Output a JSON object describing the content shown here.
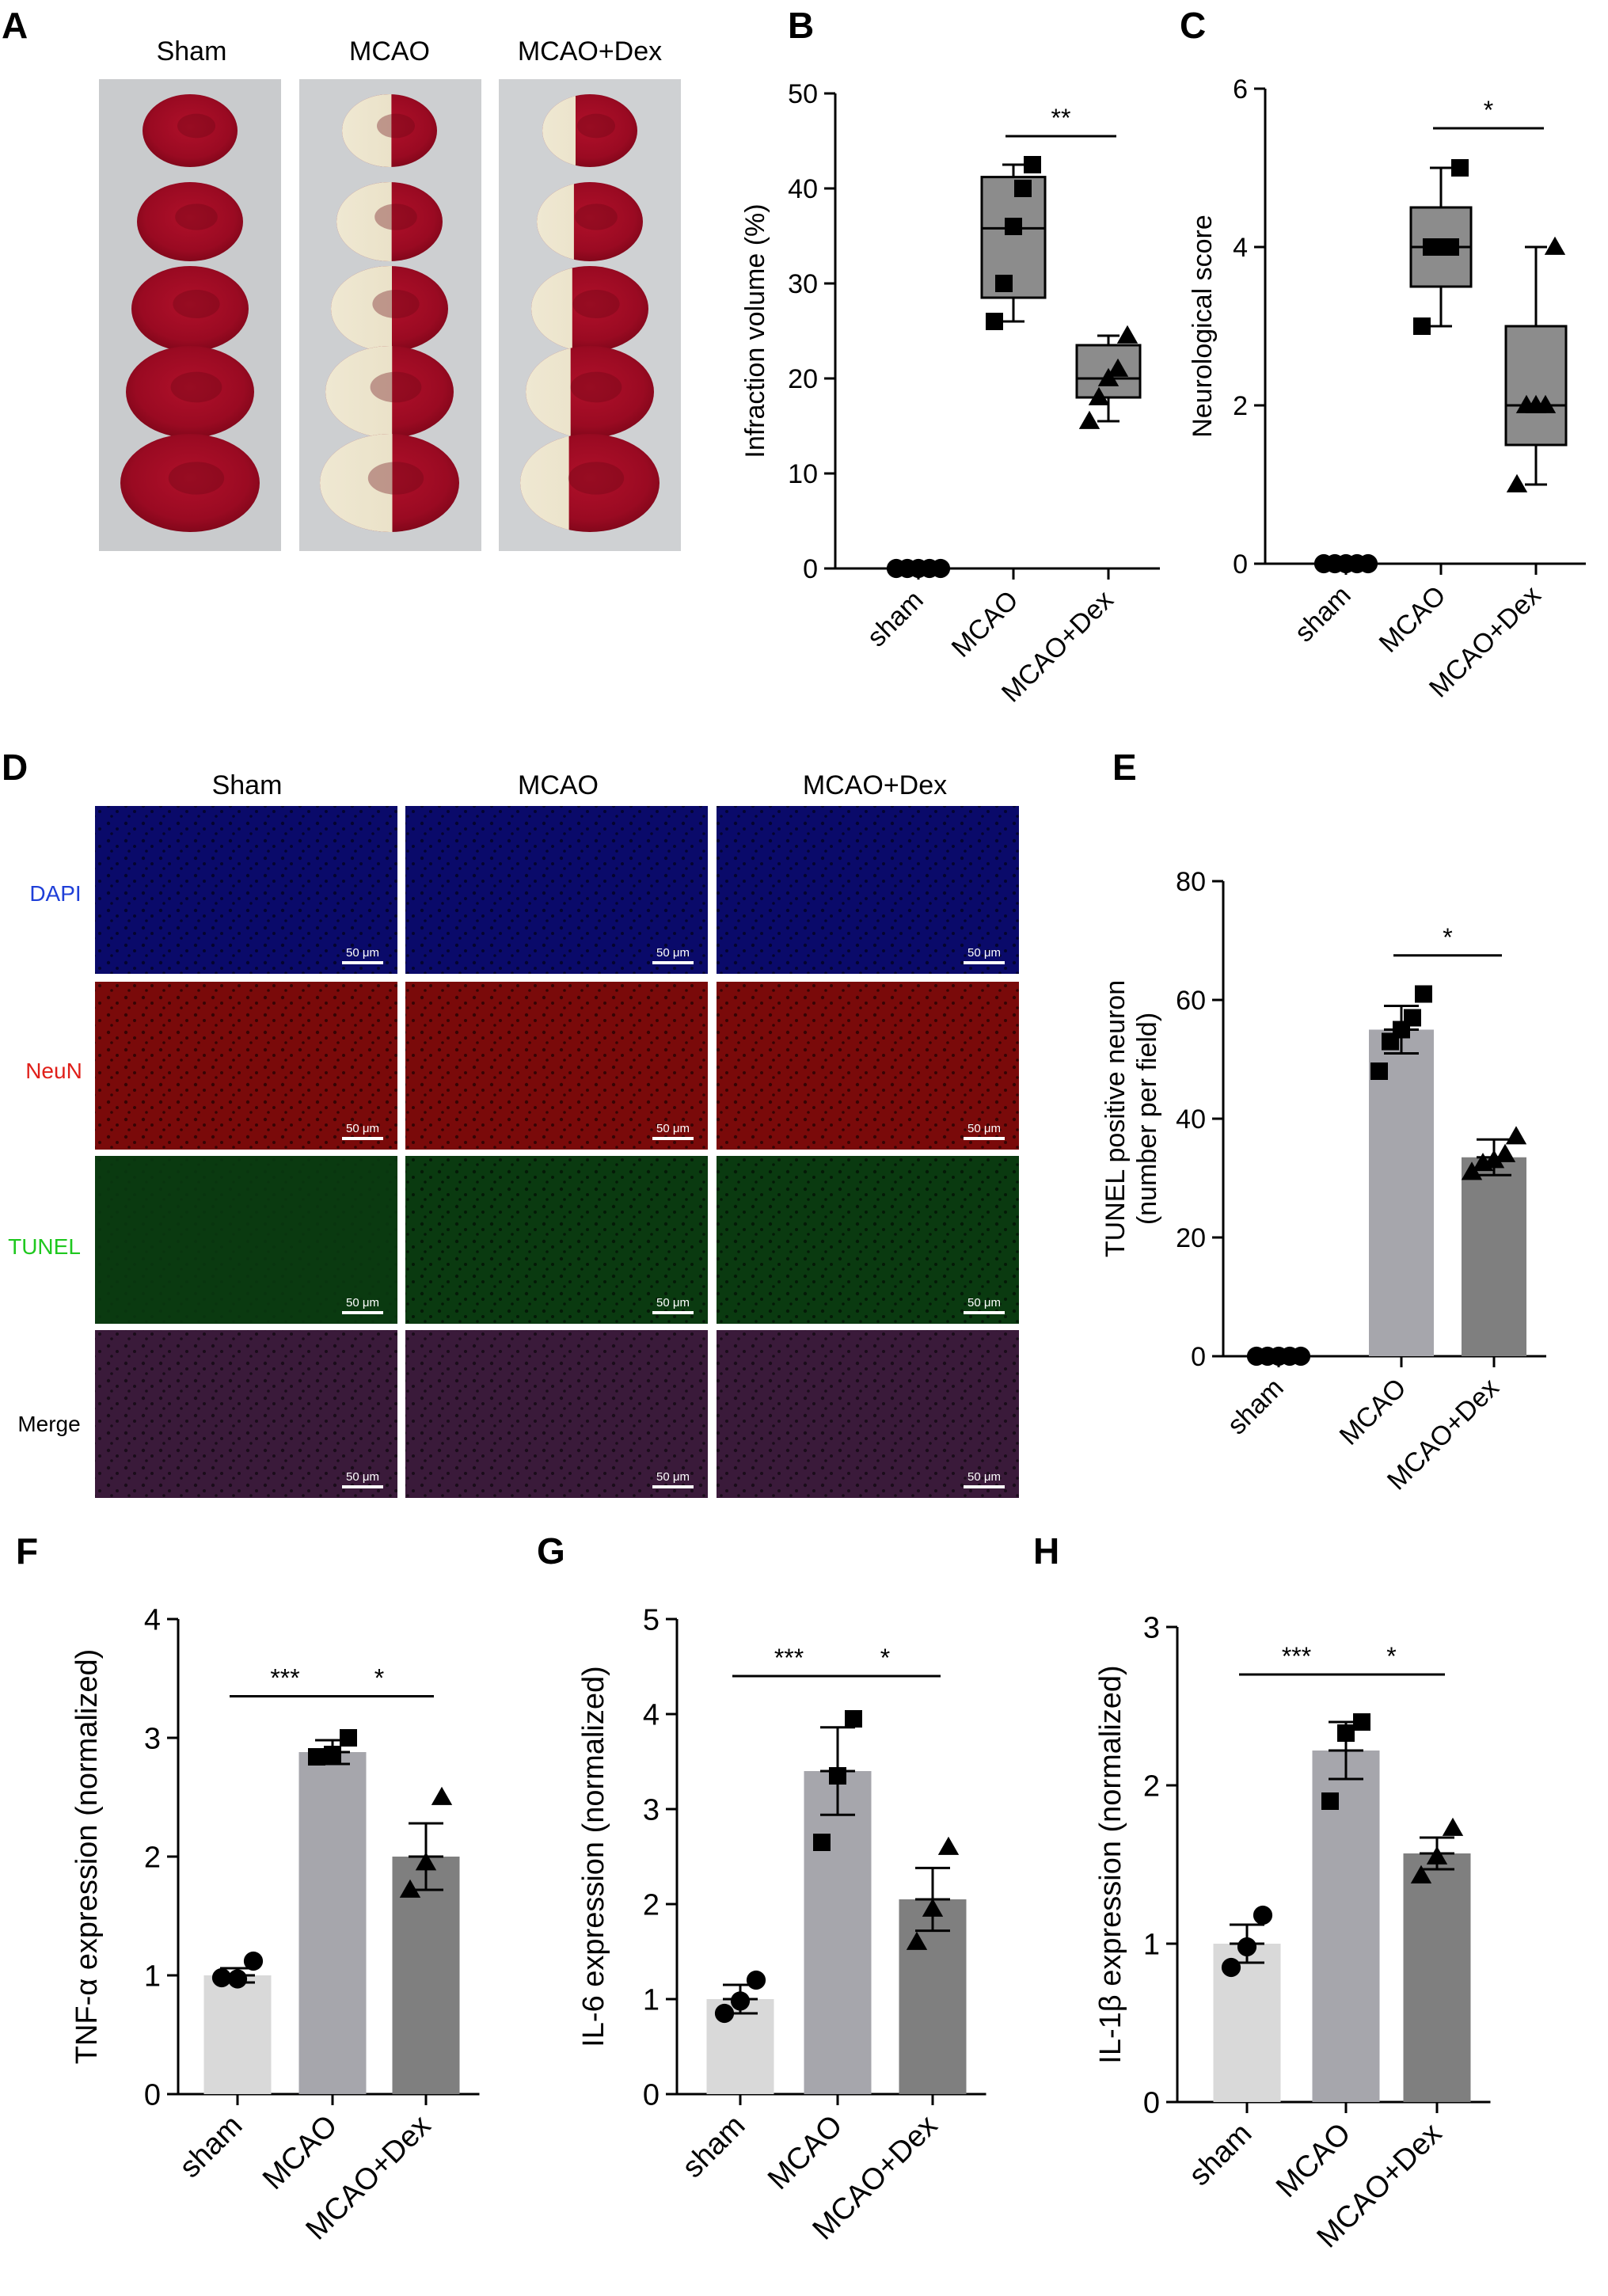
{
  "panel_letters": {
    "A": "A",
    "B": "B",
    "C": "C",
    "D": "D",
    "E": "E",
    "F": "F",
    "G": "G",
    "H": "H"
  },
  "panel_a": {
    "headers": [
      "Sham",
      "MCAO",
      "MCAO+Dex"
    ]
  },
  "panel_d": {
    "column_headers": [
      "Sham",
      "MCAO",
      "MCAO+Dex"
    ],
    "row_labels": [
      "DAPI",
      "NeuN",
      "TUNEL",
      "Merge"
    ],
    "row_label_colors": [
      "#1f3fd8",
      "#e0201a",
      "#1fc81f",
      "#000000"
    ],
    "row_tints": [
      "#0a0a6a",
      "#7a0a0a",
      "#0a3a10",
      "#3a1a3a"
    ],
    "scale_bar_label": "50 μm"
  },
  "colors": {
    "bar_sham": "#d9d9d9",
    "bar_mcao": "#a6a6ac",
    "bar_dex": "#7f7f7f",
    "box_fill": "#8c8c8c"
  },
  "chart_data": [
    {
      "id": "B",
      "type": "box",
      "categories": [
        "sham",
        "MCAO",
        "MCAO+Dex"
      ],
      "ylabel": "Infraction volume (%)",
      "ylim": [
        0,
        50
      ],
      "yticks": [
        0,
        10,
        20,
        30,
        40,
        50
      ],
      "series": [
        {
          "category": "sham",
          "min": 0,
          "q1": 0,
          "median": 0,
          "q3": 0,
          "max": 0,
          "points": [
            0,
            0,
            0,
            0,
            0
          ],
          "marker": "circle"
        },
        {
          "category": "MCAO",
          "min": 26,
          "q1": 28.5,
          "median": 35.8,
          "q3": 41.2,
          "max": 42.5,
          "points": [
            26,
            30,
            36,
            40,
            42.5
          ],
          "marker": "square"
        },
        {
          "category": "MCAO+Dex",
          "min": 15.5,
          "q1": 18,
          "median": 20,
          "q3": 23.5,
          "max": 24.5,
          "points": [
            15.5,
            18,
            20,
            21,
            24.5
          ],
          "marker": "triangle"
        }
      ],
      "significance": [
        {
          "from": "MCAO",
          "to": "MCAO+Dex",
          "label": "**",
          "y": 45.5
        }
      ]
    },
    {
      "id": "C",
      "type": "box",
      "categories": [
        "sham",
        "MCAO",
        "MCAO+Dex"
      ],
      "ylabel": "Neurological score",
      "ylim": [
        0,
        6
      ],
      "yticks": [
        0,
        2,
        4,
        6
      ],
      "series": [
        {
          "category": "sham",
          "min": 0,
          "q1": 0,
          "median": 0,
          "q3": 0,
          "max": 0,
          "points": [
            0,
            0,
            0,
            0,
            0
          ],
          "marker": "circle"
        },
        {
          "category": "MCAO",
          "min": 3,
          "q1": 3.5,
          "median": 4,
          "q3": 4.5,
          "max": 5,
          "points": [
            3,
            4,
            4,
            4,
            5
          ],
          "marker": "square"
        },
        {
          "category": "MCAO+Dex",
          "min": 1,
          "q1": 1.5,
          "median": 2,
          "q3": 3,
          "max": 4,
          "points": [
            1,
            2,
            2,
            2,
            4
          ],
          "marker": "triangle"
        }
      ],
      "significance": [
        {
          "from": "MCAO",
          "to": "MCAO+Dex",
          "label": "*",
          "y": 5.5
        }
      ]
    },
    {
      "id": "E",
      "type": "bar",
      "categories": [
        "sham",
        "MCAO",
        "MCAO+Dex"
      ],
      "ylabel": [
        "TUNEL positive neuron",
        "(number per field)"
      ],
      "ylim": [
        0,
        80
      ],
      "yticks": [
        0,
        20,
        40,
        60,
        80
      ],
      "series": [
        {
          "category": "sham",
          "value": 0,
          "error": 0,
          "points": [
            0,
            0,
            0,
            0,
            0
          ],
          "marker": "circle"
        },
        {
          "category": "MCAO",
          "value": 55,
          "error": 4,
          "points": [
            48,
            53,
            55,
            57,
            61
          ],
          "marker": "square"
        },
        {
          "category": "MCAO+Dex",
          "value": 33.5,
          "error": 3,
          "points": [
            31,
            32.5,
            33,
            34,
            37
          ],
          "marker": "triangle"
        }
      ],
      "significance": [
        {
          "from": "MCAO",
          "to": "MCAO+Dex",
          "label": "*",
          "y": 67.5
        }
      ]
    },
    {
      "id": "F",
      "type": "bar",
      "categories": [
        "sham",
        "MCAO",
        "MCAO+Dex"
      ],
      "ylabel": "TNF-α expression (normalized)",
      "ylim": [
        0,
        4
      ],
      "yticks": [
        0,
        1,
        2,
        3,
        4
      ],
      "series": [
        {
          "category": "sham",
          "value": 1.0,
          "error": 0.06,
          "points": [
            0.98,
            0.97,
            1.12
          ],
          "marker": "circle"
        },
        {
          "category": "MCAO",
          "value": 2.88,
          "error": 0.1,
          "points": [
            2.84,
            2.86,
            3.0
          ],
          "marker": "square"
        },
        {
          "category": "MCAO+Dex",
          "value": 2.0,
          "error": 0.28,
          "points": [
            1.72,
            1.95,
            2.5
          ],
          "marker": "triangle"
        }
      ],
      "significance": [
        {
          "from": "sham",
          "to": "MCAO",
          "label": "***",
          "y": 3.35
        },
        {
          "from": "MCAO",
          "to": "MCAO+Dex",
          "label": "*",
          "y": 3.35
        }
      ]
    },
    {
      "id": "G",
      "type": "bar",
      "categories": [
        "sham",
        "MCAO",
        "MCAO+Dex"
      ],
      "ylabel": "IL-6 expression (normalized)",
      "ylim": [
        0,
        5
      ],
      "yticks": [
        0,
        1,
        2,
        3,
        4,
        5
      ],
      "series": [
        {
          "category": "sham",
          "value": 1.0,
          "error": 0.15,
          "points": [
            0.85,
            0.98,
            1.2
          ],
          "marker": "circle"
        },
        {
          "category": "MCAO",
          "value": 3.4,
          "error": 0.46,
          "points": [
            2.65,
            3.35,
            3.95
          ],
          "marker": "square"
        },
        {
          "category": "MCAO+Dex",
          "value": 2.05,
          "error": 0.33,
          "points": [
            1.6,
            1.95,
            2.6
          ],
          "marker": "triangle"
        }
      ],
      "significance": [
        {
          "from": "sham",
          "to": "MCAO",
          "label": "***",
          "y": 4.4
        },
        {
          "from": "MCAO",
          "to": "MCAO+Dex",
          "label": "*",
          "y": 4.4
        }
      ]
    },
    {
      "id": "H",
      "type": "bar",
      "categories": [
        "sham",
        "MCAO",
        "MCAO+Dex"
      ],
      "ylabel": "IL-1β expression (normalized)",
      "ylim": [
        0,
        3
      ],
      "yticks": [
        0,
        1,
        2,
        3
      ],
      "series": [
        {
          "category": "sham",
          "value": 1.0,
          "error": 0.12,
          "points": [
            0.85,
            0.98,
            1.18
          ],
          "marker": "circle"
        },
        {
          "category": "MCAO",
          "value": 2.22,
          "error": 0.18,
          "points": [
            1.9,
            2.33,
            2.4
          ],
          "marker": "square"
        },
        {
          "category": "MCAO+Dex",
          "value": 1.57,
          "error": 0.1,
          "points": [
            1.43,
            1.55,
            1.73
          ],
          "marker": "triangle"
        }
      ],
      "significance": [
        {
          "from": "sham",
          "to": "MCAO",
          "label": "***",
          "y": 2.7
        },
        {
          "from": "MCAO",
          "to": "MCAO+Dex",
          "label": "*",
          "y": 2.7
        }
      ]
    }
  ]
}
